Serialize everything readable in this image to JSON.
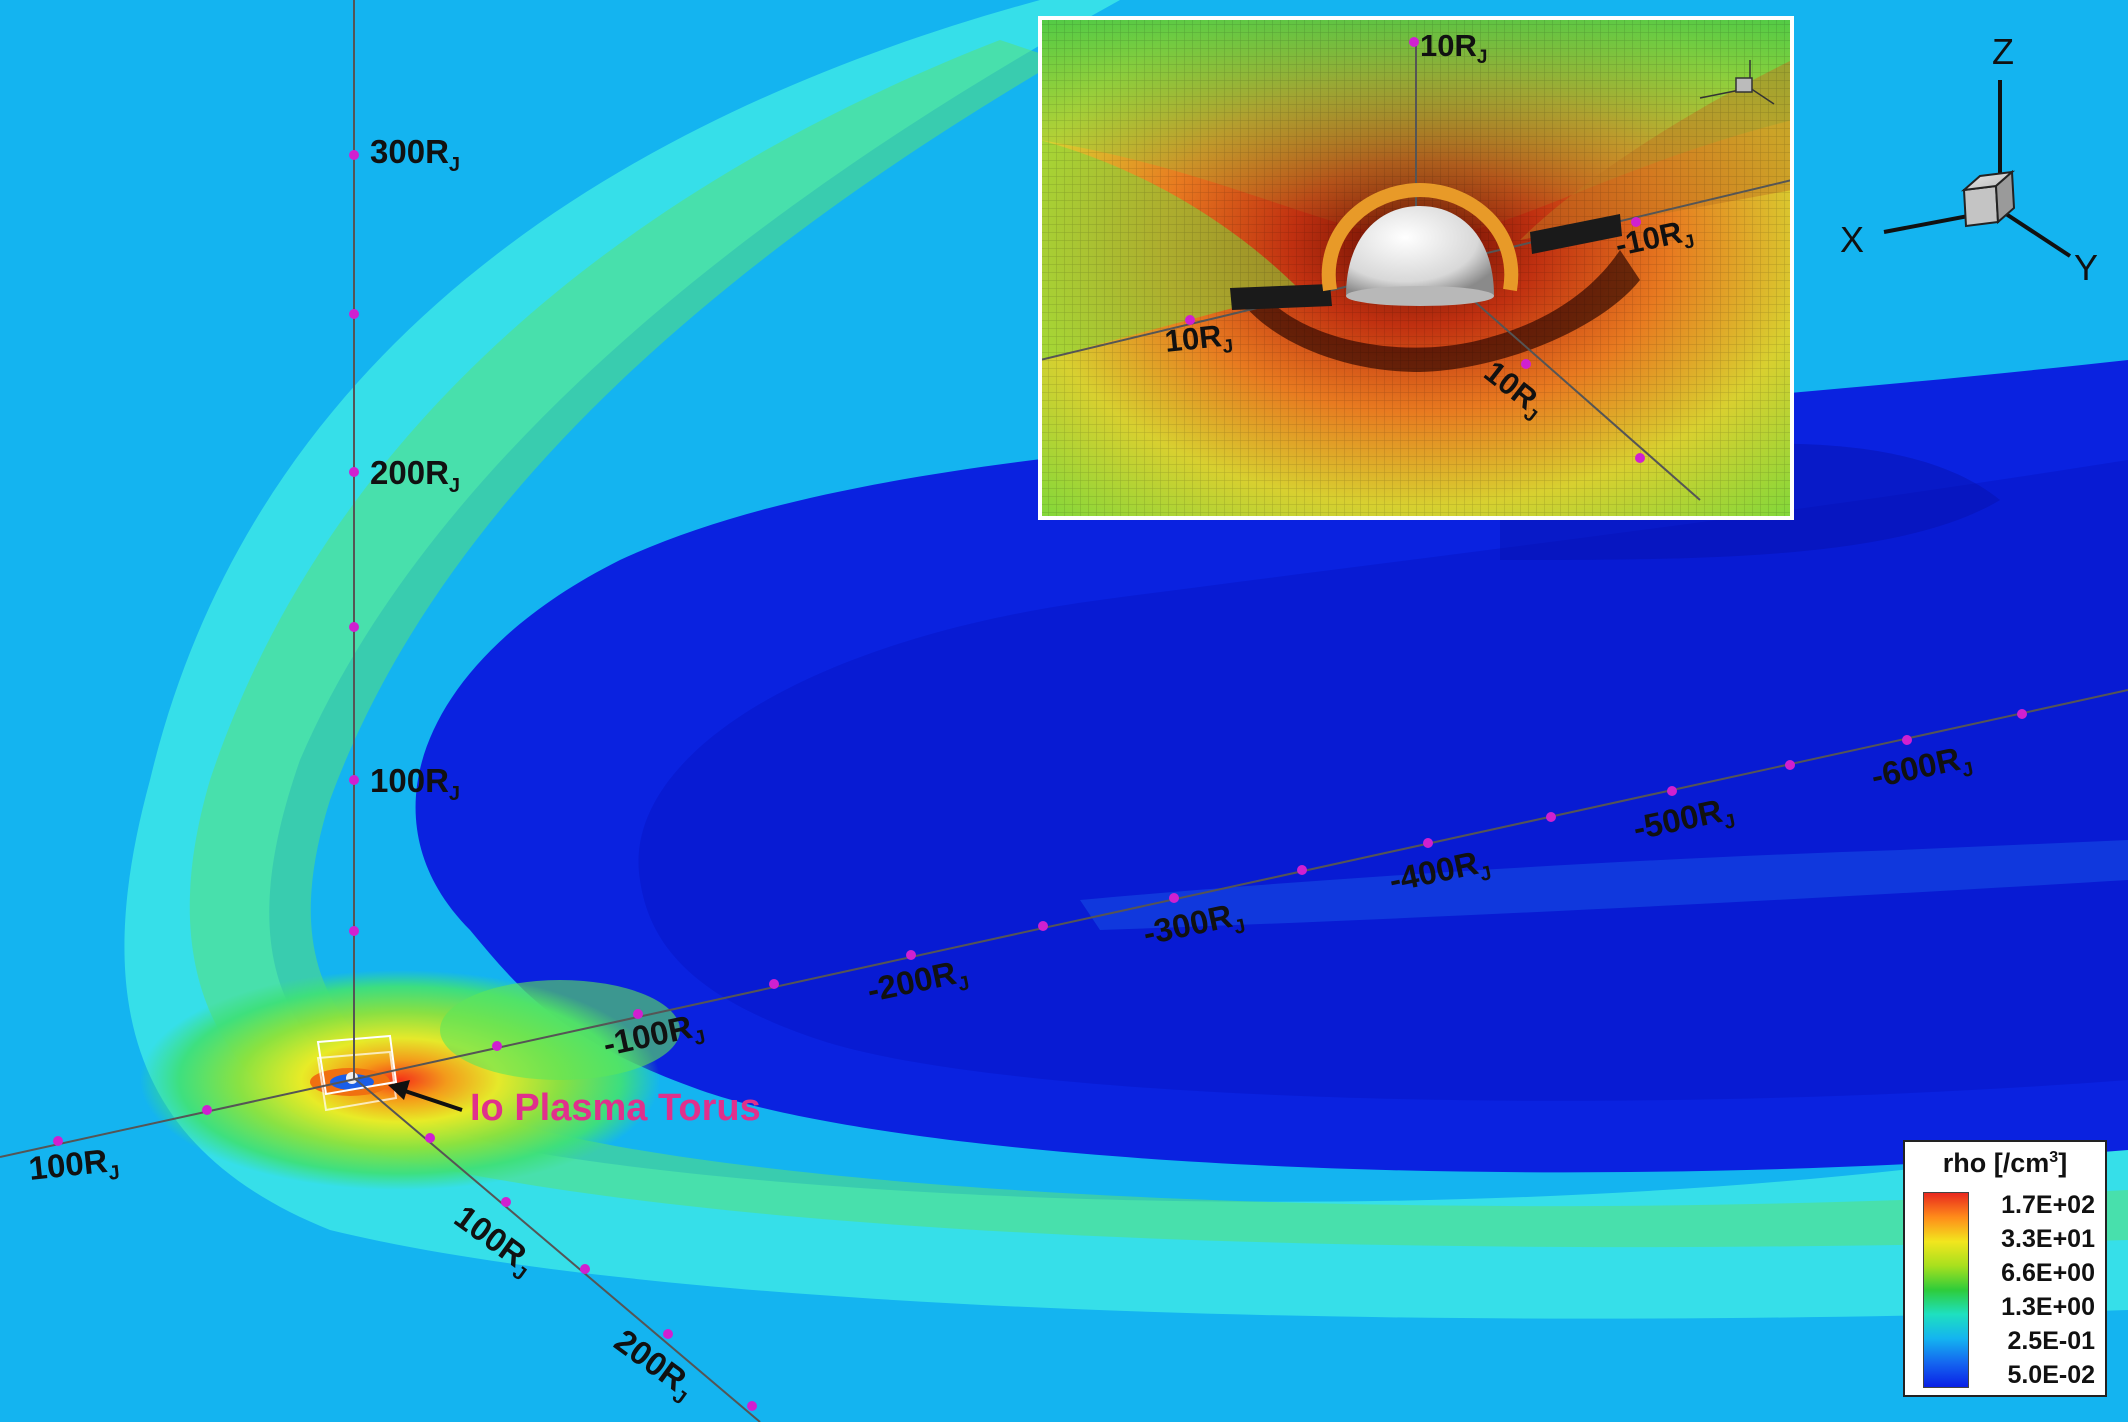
{
  "figure": {
    "colorbar": {
      "title_text": "rho [/cm",
      "title_superscript": "3",
      "title_close": "]",
      "levels": [
        "1.7E+02",
        "3.3E+01",
        "6.6E+00",
        "1.3E+00",
        "2.5E-01",
        "5.0E-02"
      ],
      "stops": [
        {
          "color": "#e8281e"
        },
        {
          "color": "#ff8c1a"
        },
        {
          "color": "#f2e61e"
        },
        {
          "color": "#a8e01e"
        },
        {
          "color": "#2ecc3a"
        },
        {
          "color": "#1ee0c0"
        },
        {
          "color": "#14b4f0"
        },
        {
          "color": "#1466f0"
        },
        {
          "color": "#0a20e6"
        }
      ]
    },
    "colors": {
      "background_cyan": "#14b4f0",
      "cavity_blue": "#0a22e0",
      "sheath_cyan": "#3ce6e8",
      "sheath_green": "#5ee65a",
      "axis_line": "#555555",
      "tick_marker": "#d020d0",
      "annotation_text": "#e0308c",
      "inset_border": "#ffffff"
    },
    "axis_unit": {
      "base": "R",
      "subscript": "J"
    },
    "axis_labels": {
      "z_axis": [
        "300",
        "200",
        "100"
      ],
      "x_axis": [
        "-100",
        "-200",
        "-300",
        "-400",
        "-500",
        "-600"
      ],
      "y_axis": [
        "100",
        "200"
      ],
      "left_axis": [
        "100"
      ]
    },
    "annotation": {
      "text": "Io Plasma Torus"
    },
    "inset": {
      "labels": [
        "10",
        "-10",
        "10",
        "10"
      ]
    },
    "orientation_triad": {
      "x": "X",
      "y": "Y",
      "z": "Z"
    }
  }
}
